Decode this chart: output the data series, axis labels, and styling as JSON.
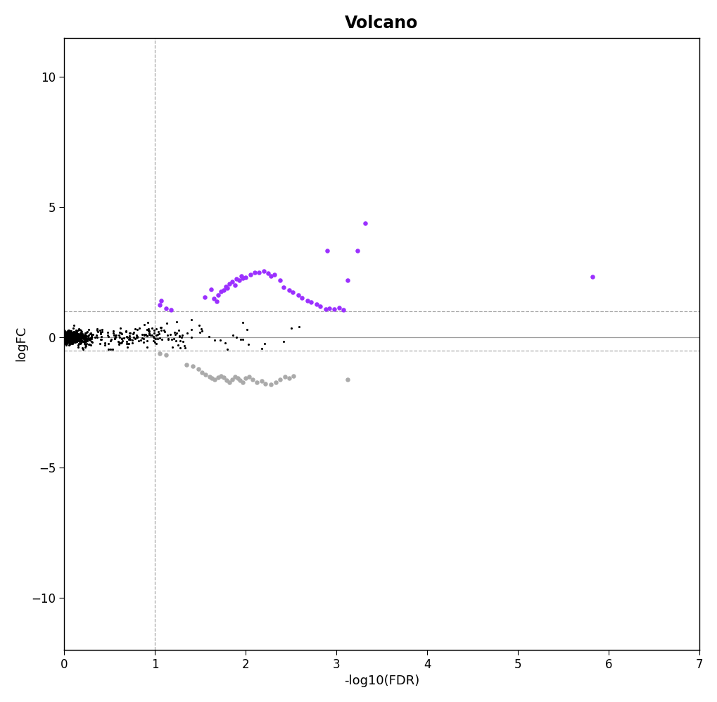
{
  "title": "Volcano",
  "xlabel": "-log10(FDR)",
  "ylabel": "logFC",
  "xlim": [
    0,
    7
  ],
  "ylim": [
    -12,
    11.5
  ],
  "xticks": [
    0,
    1,
    2,
    3,
    4,
    5,
    6,
    7
  ],
  "yticks": [
    -10,
    -5,
    0,
    5,
    10
  ],
  "vline_x": 1.0,
  "hline_up": 1.0,
  "hline_down": -0.5,
  "hline_zero": 0.0,
  "purple_dots": [
    [
      1.05,
      1.25
    ],
    [
      1.07,
      1.4
    ],
    [
      1.12,
      1.1
    ],
    [
      1.18,
      1.05
    ],
    [
      1.55,
      1.55
    ],
    [
      1.62,
      1.85
    ],
    [
      1.65,
      1.5
    ],
    [
      1.68,
      1.38
    ],
    [
      1.7,
      1.62
    ],
    [
      1.73,
      1.75
    ],
    [
      1.76,
      1.82
    ],
    [
      1.78,
      1.95
    ],
    [
      1.8,
      1.88
    ],
    [
      1.82,
      2.05
    ],
    [
      1.85,
      2.15
    ],
    [
      1.88,
      2.0
    ],
    [
      1.9,
      2.25
    ],
    [
      1.93,
      2.18
    ],
    [
      1.95,
      2.35
    ],
    [
      1.97,
      2.28
    ],
    [
      2.0,
      2.3
    ],
    [
      2.05,
      2.42
    ],
    [
      2.1,
      2.5
    ],
    [
      2.15,
      2.48
    ],
    [
      2.2,
      2.55
    ],
    [
      2.25,
      2.45
    ],
    [
      2.28,
      2.35
    ],
    [
      2.32,
      2.42
    ],
    [
      2.38,
      2.2
    ],
    [
      2.42,
      1.92
    ],
    [
      2.48,
      1.82
    ],
    [
      2.52,
      1.72
    ],
    [
      2.58,
      1.62
    ],
    [
      2.62,
      1.52
    ],
    [
      2.68,
      1.42
    ],
    [
      2.72,
      1.35
    ],
    [
      2.78,
      1.28
    ],
    [
      2.82,
      1.18
    ],
    [
      2.88,
      1.08
    ],
    [
      2.92,
      1.12
    ],
    [
      2.98,
      1.09
    ],
    [
      3.03,
      1.13
    ],
    [
      3.08,
      1.06
    ],
    [
      3.23,
      3.32
    ],
    [
      3.32,
      4.38
    ],
    [
      3.12,
      2.18
    ],
    [
      2.9,
      3.32
    ],
    [
      5.82,
      2.32
    ]
  ],
  "grey_dots": [
    [
      1.05,
      -0.62
    ],
    [
      1.12,
      -0.68
    ],
    [
      1.35,
      -1.05
    ],
    [
      1.42,
      -1.12
    ],
    [
      1.48,
      -1.22
    ],
    [
      1.52,
      -1.35
    ],
    [
      1.56,
      -1.42
    ],
    [
      1.6,
      -1.52
    ],
    [
      1.63,
      -1.58
    ],
    [
      1.66,
      -1.62
    ],
    [
      1.7,
      -1.55
    ],
    [
      1.73,
      -1.48
    ],
    [
      1.76,
      -1.55
    ],
    [
      1.79,
      -1.65
    ],
    [
      1.82,
      -1.72
    ],
    [
      1.85,
      -1.62
    ],
    [
      1.88,
      -1.52
    ],
    [
      1.91,
      -1.58
    ],
    [
      1.94,
      -1.65
    ],
    [
      1.97,
      -1.72
    ],
    [
      2.0,
      -1.58
    ],
    [
      2.04,
      -1.52
    ],
    [
      2.08,
      -1.62
    ],
    [
      2.12,
      -1.72
    ],
    [
      2.18,
      -1.68
    ],
    [
      2.22,
      -1.78
    ],
    [
      2.28,
      -1.82
    ],
    [
      2.33,
      -1.72
    ],
    [
      2.38,
      -1.62
    ],
    [
      2.43,
      -1.52
    ],
    [
      2.48,
      -1.58
    ],
    [
      2.53,
      -1.48
    ],
    [
      3.12,
      -1.62
    ]
  ],
  "dot_size_colored": 22,
  "dot_size_black": 5,
  "purple_color": "#9B30FF",
  "grey_color": "#AAAAAA",
  "black_color": "#000000",
  "line_color_dashed": "#AAAAAA",
  "line_color_solid": "#999999",
  "background_color": "#FFFFFF",
  "title_fontsize": 17,
  "label_fontsize": 13,
  "tick_fontsize": 12
}
